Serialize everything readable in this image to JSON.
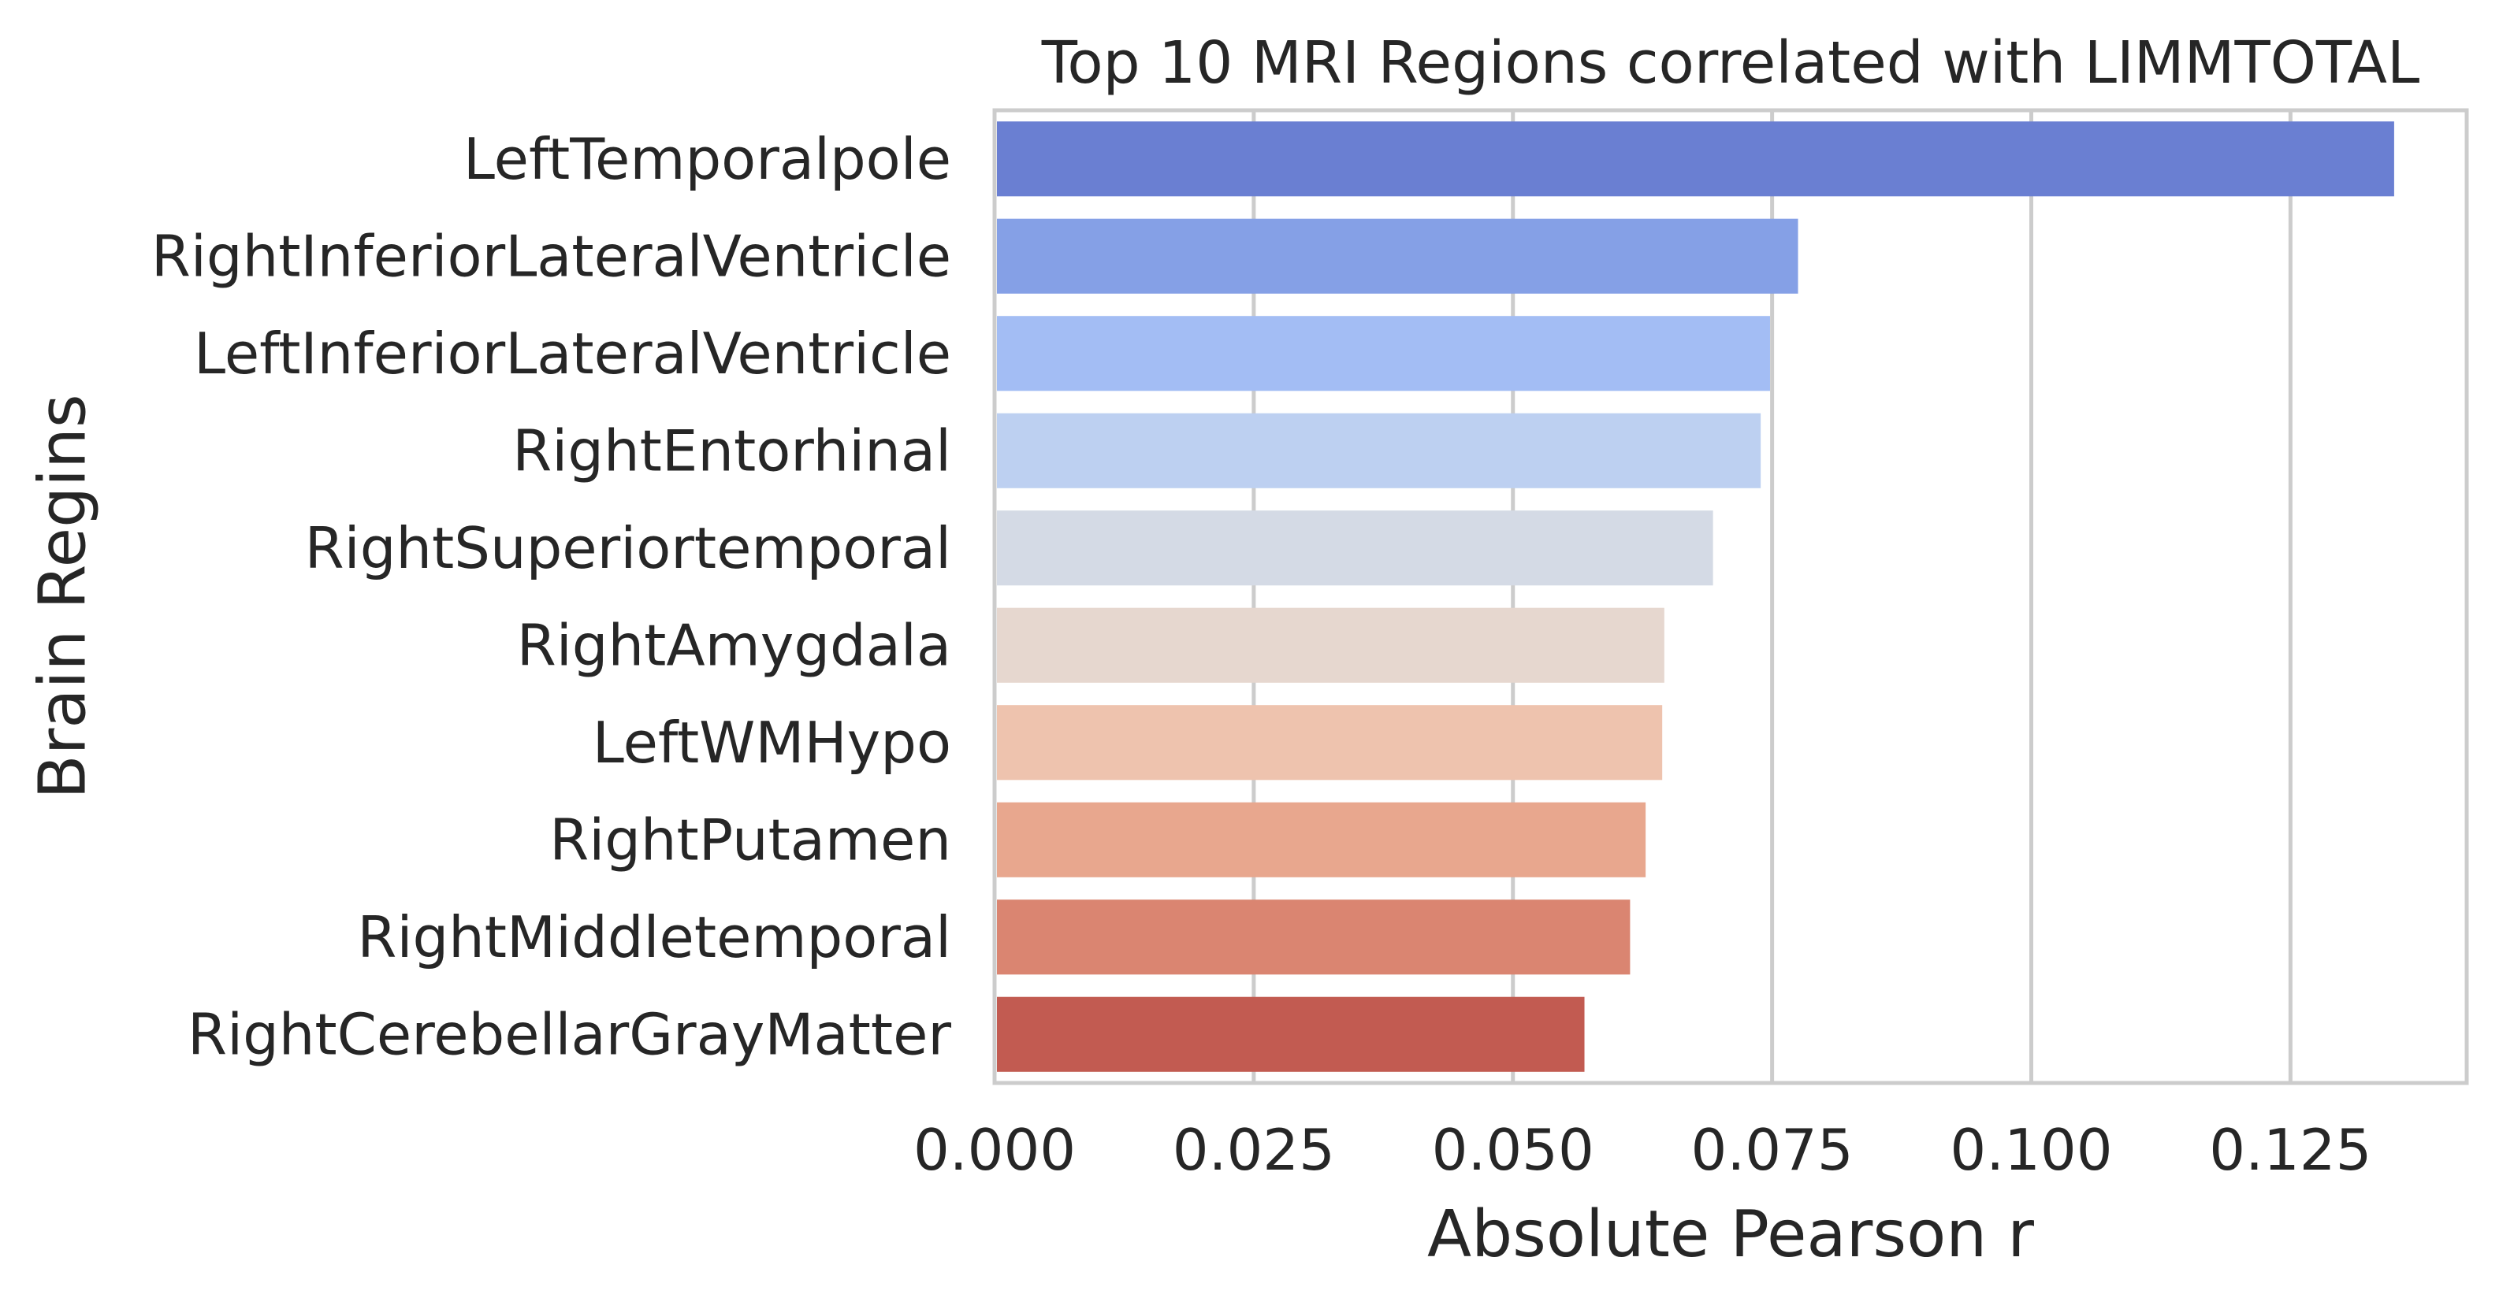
{
  "chart_data": {
    "type": "bar",
    "orientation": "horizontal",
    "title": "Top 10 MRI Regions correlated with LIMMTOTAL",
    "xlabel": "Absolute Pearson r",
    "ylabel": "Brain Regins",
    "xlim": [
      0,
      0.142
    ],
    "xticks": [
      0.0,
      0.025,
      0.05,
      0.075,
      0.1,
      0.125
    ],
    "xtick_labels": [
      "0.000",
      "0.025",
      "0.050",
      "0.075",
      "0.100",
      "0.125"
    ],
    "grid": true,
    "categories": [
      "LeftTemporalpole",
      "RightInferiorLateralVentricle",
      "LeftInferiorLateralVentricle",
      "RightEntorhinal",
      "RightSuperiortemporal",
      "RightAmygdala",
      "LeftWMHypo",
      "RightPutamen",
      "RightMiddletemporal",
      "RightCerebellarGrayMatter"
    ],
    "values": [
      0.135,
      0.0775,
      0.0748,
      0.0739,
      0.0693,
      0.0646,
      0.0644,
      0.0628,
      0.0613,
      0.0569
    ],
    "colors": [
      "#6a7fd2",
      "#85a0e6",
      "#a3bdf4",
      "#bdd0f1",
      "#d4dae5",
      "#e6d7cf",
      "#eec3ae",
      "#e8a78e",
      "#da8571",
      "#c25b51"
    ]
  }
}
